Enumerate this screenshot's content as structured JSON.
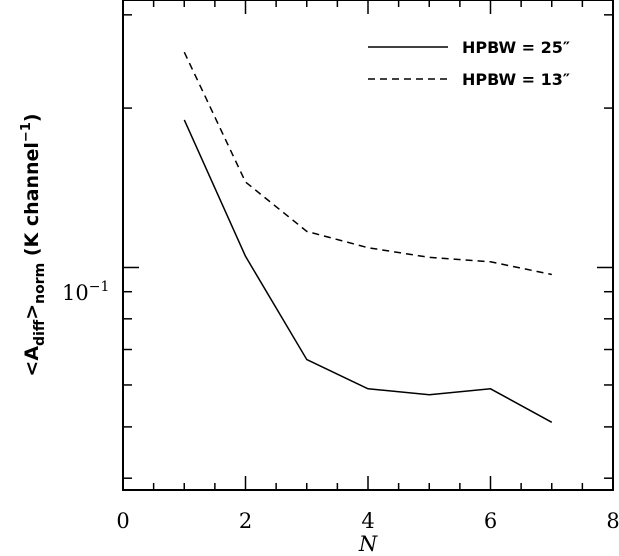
{
  "chart_data": {
    "type": "line",
    "xlabel": "N",
    "ylabel": {
      "open": "<A",
      "sub1": "diff",
      "close": ">",
      "sub2": "norm",
      "unit_open": " (K channel",
      "unit_exp": "−1",
      "unit_close": ")"
    },
    "xlim": [
      0,
      8
    ],
    "ylim": [
      0.038,
      0.32
    ],
    "yscale": "log",
    "x_ticks": [
      "0",
      "2",
      "4",
      "6",
      "8"
    ],
    "y_ticks": [
      {
        "base": "10",
        "exp": "−1"
      }
    ],
    "legend_position": "top-right",
    "series": [
      {
        "name": "HPBW = 25″",
        "style": "solid",
        "x": [
          1,
          2,
          3,
          4,
          5,
          6,
          7
        ],
        "y": [
          0.19,
          0.105,
          0.067,
          0.059,
          0.0575,
          0.059,
          0.051
        ]
      },
      {
        "name": "HPBW = 13″",
        "style": "dashed",
        "x": [
          1,
          2,
          3,
          4,
          5,
          6,
          7
        ],
        "y": [
          0.255,
          0.145,
          0.117,
          0.109,
          0.1045,
          0.1025,
          0.097
        ]
      }
    ]
  }
}
